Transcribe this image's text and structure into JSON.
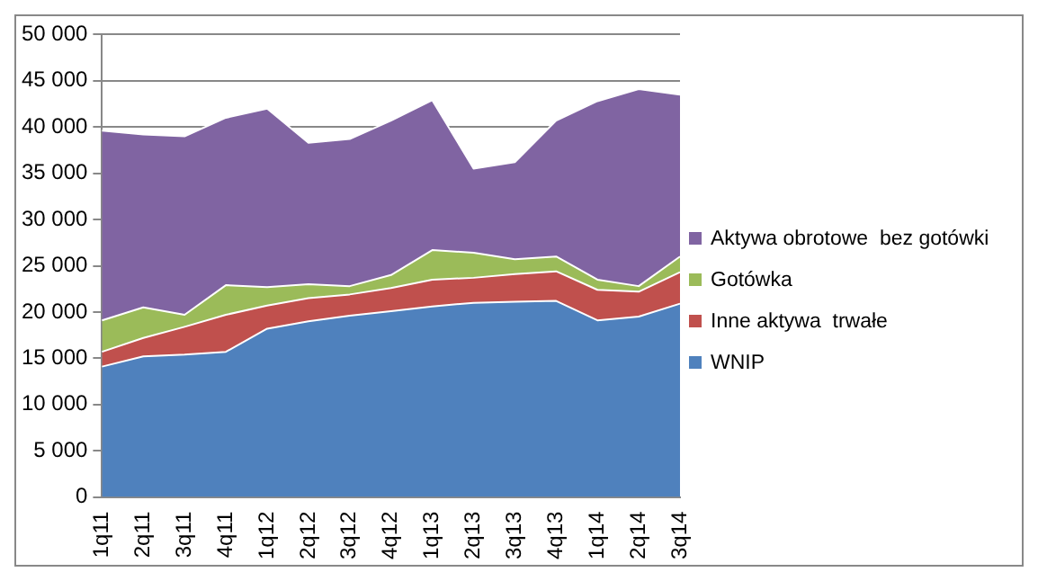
{
  "chart_data": {
    "type": "area",
    "stacked": true,
    "categories": [
      "1q11",
      "2q11",
      "3q11",
      "4q11",
      "1q12",
      "2q12",
      "3q12",
      "4q12",
      "1q13",
      "2q13",
      "3q13",
      "4q13",
      "1q14",
      "2q14",
      "3q14"
    ],
    "series": [
      {
        "name": "WNIP",
        "color": "#4f81bd",
        "values": [
          14100,
          15200,
          15400,
          15700,
          18200,
          19000,
          19600,
          20100,
          20600,
          21000,
          21100,
          21200,
          19100,
          19500,
          20900
        ]
      },
      {
        "name": "Inne aktywa  trwałe",
        "color": "#c0504d",
        "values": [
          1600,
          2000,
          3000,
          4000,
          2500,
          2500,
          2300,
          2500,
          2900,
          2700,
          3000,
          3200,
          3300,
          2700,
          3400
        ]
      },
      {
        "name": "Gotówka",
        "color": "#9bbb59",
        "values": [
          3400,
          3300,
          1300,
          3200,
          2000,
          1500,
          900,
          1400,
          3200,
          2700,
          1600,
          1600,
          1100,
          600,
          1700
        ]
      },
      {
        "name": "Aktywa obrotowe  bez gotówki",
        "color": "#8064a2",
        "values": [
          20500,
          18700,
          19300,
          18100,
          19300,
          15300,
          15900,
          16700,
          16200,
          9100,
          10500,
          14700,
          19300,
          21300,
          17500
        ]
      }
    ],
    "ylim": [
      0,
      50000
    ],
    "yticks": [
      {
        "value": 0,
        "label": "0"
      },
      {
        "value": 5000,
        "label": "5 000"
      },
      {
        "value": 10000,
        "label": "10 000"
      },
      {
        "value": 15000,
        "label": "15 000"
      },
      {
        "value": 20000,
        "label": "20 000"
      },
      {
        "value": 25000,
        "label": "25 000"
      },
      {
        "value": 30000,
        "label": "30 000"
      },
      {
        "value": 35000,
        "label": "35 000"
      },
      {
        "value": 40000,
        "label": "40 000"
      },
      {
        "value": 45000,
        "label": "45 000"
      },
      {
        "value": 50000,
        "label": "50 000"
      }
    ],
    "grid": "y",
    "legend": "right"
  }
}
